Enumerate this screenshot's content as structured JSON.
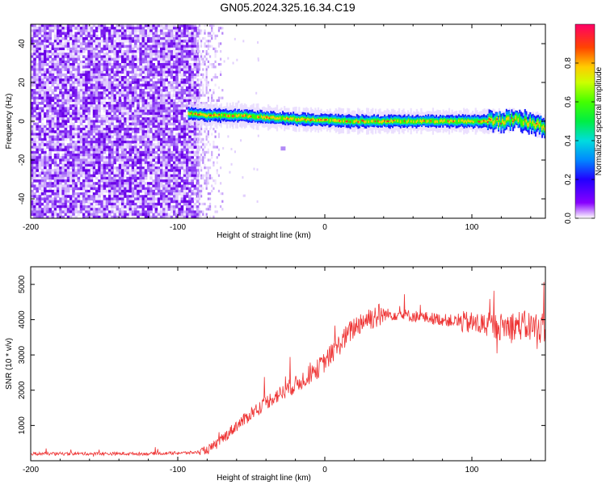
{
  "title": "GN05.2024.325.16.34.C19",
  "chart_data": [
    {
      "type": "heatmap",
      "xlabel": "Height of straight line (km)",
      "ylabel": "Frequency (Hz)",
      "xlim": [
        -200,
        150
      ],
      "ylim": [
        -50,
        50
      ],
      "xticks": [
        -200,
        -100,
        0,
        100
      ],
      "yticks": [
        -40,
        -20,
        0,
        20,
        40
      ],
      "colorbar": {
        "label": "Normalized spectral amplitude",
        "range": [
          0.0,
          1.0
        ],
        "ticks": [
          "0.0",
          "0.2",
          "0.4",
          "0.6",
          "0.8"
        ]
      },
      "features": {
        "noise_region_x": [
          -200,
          -87
        ],
        "sparse_region_x": [
          -87,
          -70
        ],
        "signal_start_x": -93,
        "signal_center_frequency": [
          [
            -93,
            4
          ],
          [
            -80,
            3
          ],
          [
            -60,
            3
          ],
          [
            -40,
            2
          ],
          [
            -20,
            1
          ],
          [
            0,
            0.5
          ],
          [
            20,
            0
          ],
          [
            50,
            0
          ],
          [
            80,
            0
          ],
          [
            100,
            0
          ],
          [
            120,
            0
          ],
          [
            130,
            1
          ],
          [
            140,
            -1
          ],
          [
            150,
            -3
          ]
        ]
      }
    },
    {
      "type": "line",
      "xlabel": "Height of straight line (km)",
      "ylabel": "SNR (10 * v/v)",
      "xlim": [
        -200,
        150
      ],
      "ylim": [
        0,
        5500
      ],
      "xticks": [
        -200,
        -100,
        0,
        100
      ],
      "yticks": [
        1000,
        2000,
        3000,
        4000,
        5000
      ],
      "series": [
        {
          "color": "#ee3333",
          "x": [
            -200,
            -180,
            -160,
            -140,
            -120,
            -100,
            -90,
            -85,
            -80,
            -75,
            -70,
            -65,
            -60,
            -55,
            -50,
            -45,
            -40,
            -35,
            -30,
            -25,
            -20,
            -15,
            -10,
            -5,
            0,
            5,
            10,
            15,
            20,
            25,
            30,
            40,
            50,
            60,
            70,
            80,
            90,
            100,
            110,
            120,
            130,
            140,
            150
          ],
          "y": [
            200,
            200,
            200,
            200,
            200,
            220,
            230,
            250,
            300,
            420,
            600,
            800,
            1000,
            1150,
            1350,
            1500,
            1650,
            1800,
            1900,
            2050,
            2150,
            2300,
            2450,
            2600,
            2800,
            3050,
            3300,
            3550,
            3780,
            3950,
            4050,
            4150,
            4150,
            4100,
            4050,
            4000,
            3950,
            3900,
            3850,
            3800,
            3850,
            3800,
            3750
          ]
        }
      ]
    }
  ]
}
